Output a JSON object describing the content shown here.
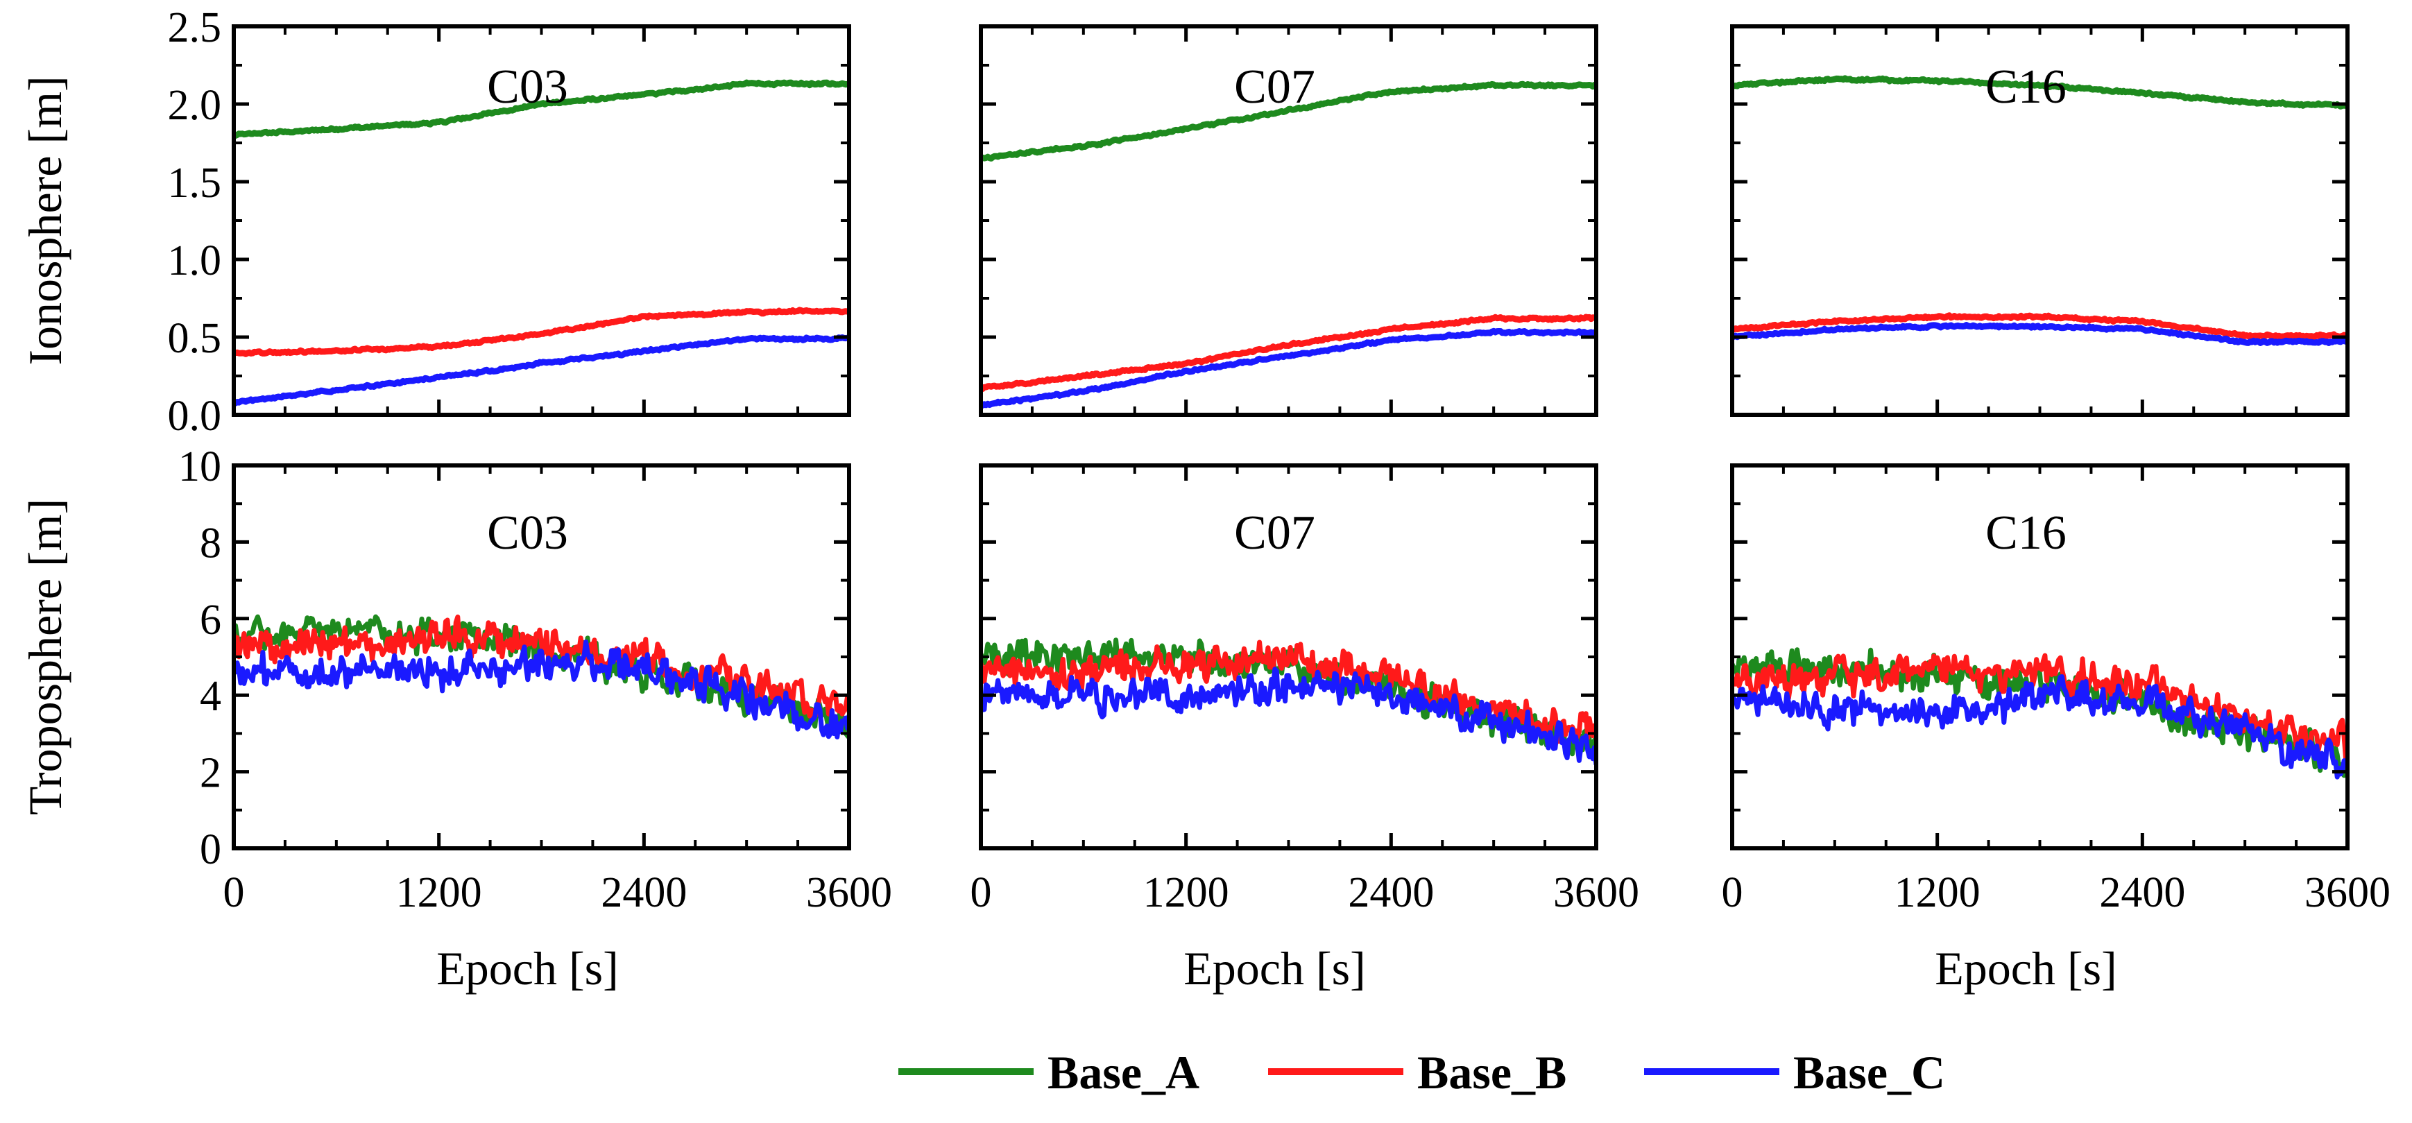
{
  "chart_data": {
    "type": "line",
    "x_label": "Epoch [s]",
    "x_ticks": [
      "0",
      "1200",
      "2400",
      "3600"
    ],
    "xlim": [
      0,
      3600
    ],
    "series_names": [
      "Base_A",
      "Base_B",
      "Base_C"
    ],
    "colors": {
      "Base_A": "#1e8a1e",
      "Base_B": "#ff1a1a",
      "Base_C": "#1a1aff"
    },
    "legend": {
      "placement": "bottom-center",
      "entries": [
        "Base_A",
        "Base_B",
        "Base_C"
      ]
    },
    "rows": [
      {
        "y_label": "Ionosphere [m]",
        "ylim": [
          0,
          2.5
        ],
        "y_ticks": [
          "0.0",
          "0.5",
          "1.0",
          "1.5",
          "2.0",
          "2.5"
        ],
        "noise": 0.006,
        "panels": [
          {
            "title": "C03",
            "series": [
              {
                "name": "Base_A",
                "x": [
                  0,
                  600,
                  1200,
                  1800,
                  2400,
                  3000,
                  3600
                ],
                "y": [
                  1.8,
                  1.84,
                  1.88,
                  2.0,
                  2.06,
                  2.13,
                  2.13
                ]
              },
              {
                "name": "Base_B",
                "x": [
                  0,
                  600,
                  1200,
                  1800,
                  2400,
                  3000,
                  3600
                ],
                "y": [
                  0.4,
                  0.41,
                  0.44,
                  0.52,
                  0.63,
                  0.66,
                  0.67
                ]
              },
              {
                "name": "Base_C",
                "x": [
                  0,
                  600,
                  1200,
                  1800,
                  2400,
                  3000,
                  3600
                ],
                "y": [
                  0.08,
                  0.16,
                  0.24,
                  0.33,
                  0.41,
                  0.49,
                  0.49
                ]
              }
            ]
          },
          {
            "title": "C07",
            "series": [
              {
                "name": "Base_A",
                "x": [
                  0,
                  600,
                  1200,
                  1800,
                  2400,
                  3000,
                  3600
                ],
                "y": [
                  1.65,
                  1.73,
                  1.84,
                  1.96,
                  2.08,
                  2.12,
                  2.12
                ]
              },
              {
                "name": "Base_B",
                "x": [
                  0,
                  600,
                  1200,
                  1800,
                  2400,
                  3000,
                  3600
                ],
                "y": [
                  0.17,
                  0.25,
                  0.33,
                  0.45,
                  0.55,
                  0.62,
                  0.62
                ]
              },
              {
                "name": "Base_C",
                "x": [
                  0,
                  600,
                  1200,
                  1800,
                  2400,
                  3000,
                  3600
                ],
                "y": [
                  0.06,
                  0.15,
                  0.28,
                  0.38,
                  0.48,
                  0.53,
                  0.53
                ]
              }
            ]
          },
          {
            "title": "C16",
            "series": [
              {
                "name": "Base_A",
                "x": [
                  0,
                  600,
                  1200,
                  1800,
                  2400,
                  3000,
                  3600
                ],
                "y": [
                  2.12,
                  2.16,
                  2.15,
                  2.12,
                  2.07,
                  2.01,
                  1.99
                ]
              },
              {
                "name": "Base_B",
                "x": [
                  0,
                  600,
                  1200,
                  1800,
                  2400,
                  3000,
                  3600
                ],
                "y": [
                  0.55,
                  0.6,
                  0.63,
                  0.63,
                  0.6,
                  0.51,
                  0.51
                ]
              },
              {
                "name": "Base_C",
                "x": [
                  0,
                  600,
                  1200,
                  1800,
                  2400,
                  3000,
                  3600
                ],
                "y": [
                  0.5,
                  0.55,
                  0.57,
                  0.57,
                  0.55,
                  0.47,
                  0.47
                ]
              }
            ]
          }
        ]
      },
      {
        "y_label": "Troposphere [m]",
        "ylim": [
          0,
          10
        ],
        "y_ticks": [
          "0",
          "2",
          "4",
          "6",
          "8",
          "10"
        ],
        "noise": 0.35,
        "panels": [
          {
            "title": "C03",
            "series": [
              {
                "name": "Base_A",
                "x": [
                  0,
                  600,
                  1200,
                  1800,
                  2400,
                  3000,
                  3600
                ],
                "y": [
                  5.5,
                  5.7,
                  5.6,
                  5.2,
                  4.6,
                  4.0,
                  3.3
                ]
              },
              {
                "name": "Base_B",
                "x": [
                  0,
                  600,
                  1200,
                  1800,
                  2400,
                  3000,
                  3600
                ],
                "y": [
                  5.2,
                  5.3,
                  5.6,
                  5.4,
                  5.0,
                  4.3,
                  3.6
                ]
              },
              {
                "name": "Base_C",
                "x": [
                  0,
                  600,
                  1200,
                  1800,
                  2400,
                  3000,
                  3600
                ],
                "y": [
                  4.5,
                  4.6,
                  4.7,
                  4.8,
                  4.7,
                  4.0,
                  3.2
                ]
              }
            ]
          },
          {
            "title": "C07",
            "series": [
              {
                "name": "Base_A",
                "x": [
                  0,
                  600,
                  1200,
                  1800,
                  2400,
                  3000,
                  3600
                ],
                "y": [
                  5.0,
                  5.1,
                  5.0,
                  4.7,
                  4.1,
                  3.4,
                  2.7
                ]
              },
              {
                "name": "Base_B",
                "x": [
                  0,
                  600,
                  1200,
                  1800,
                  2400,
                  3000,
                  3600
                ],
                "y": [
                  4.6,
                  4.6,
                  4.9,
                  4.8,
                  4.5,
                  3.6,
                  3.0
                ]
              },
              {
                "name": "Base_C",
                "x": [
                  0,
                  600,
                  1200,
                  1800,
                  2400,
                  3000,
                  3600
                ],
                "y": [
                  4.1,
                  4.0,
                  4.0,
                  4.2,
                  4.1,
                  3.3,
                  2.5
                ]
              }
            ]
          },
          {
            "title": "C16",
            "series": [
              {
                "name": "Base_A",
                "x": [
                  0,
                  600,
                  1200,
                  1800,
                  2400,
                  3000,
                  3600
                ],
                "y": [
                  4.7,
                  4.7,
                  4.6,
                  4.3,
                  3.8,
                  3.0,
                  2.3
                ]
              },
              {
                "name": "Base_B",
                "x": [
                  0,
                  600,
                  1200,
                  1800,
                  2400,
                  3000,
                  3600
                ],
                "y": [
                  4.3,
                  4.4,
                  4.7,
                  4.6,
                  4.3,
                  3.4,
                  2.7
                ]
              },
              {
                "name": "Base_C",
                "x": [
                  0,
                  600,
                  1200,
                  1800,
                  2400,
                  3000,
                  3600
                ],
                "y": [
                  3.8,
                  3.6,
                  3.6,
                  4.0,
                  3.8,
                  3.0,
                  2.2
                ]
              }
            ]
          }
        ]
      }
    ]
  }
}
